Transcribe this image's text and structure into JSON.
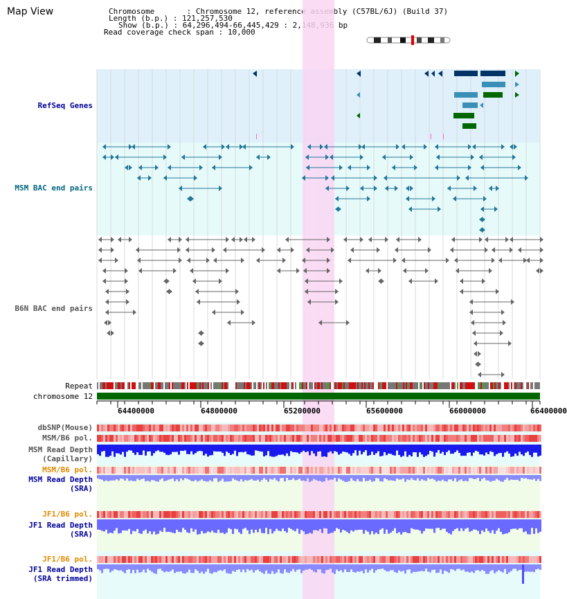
{
  "title": "Map View",
  "header": {
    "chromosome_label": "Chromosome",
    "chromosome_value": "Chromosome 12, reference assembly (C57BL/6J) (Build 37)",
    "length_label": "Length (b.p.)",
    "length_value": "121,257,530",
    "show_label": "Show (b.p.)",
    "show_value": "64,296,494-66,445,429 : 2,148,936 bp",
    "coverage_label": "Read coverage check span",
    "coverage_value": "10,000"
  },
  "tracks": {
    "refseq": "RefSeq Genes",
    "msm_bac": "MSM BAC end pairs",
    "b6n_bac": "B6N BAC end pairs",
    "repeat": "Repeat",
    "chromosome": "chromosome 12"
  },
  "ruler": {
    "ticks": [
      "64400000",
      "64800000",
      "65200000",
      "65600000",
      "66000000",
      "66400000"
    ]
  },
  "lower_tracks": {
    "dbsnp": "dbSNP(Mouse)",
    "msm_b6_pol_1": "MSM/B6 pol.",
    "msm_depth_cap_1": "MSM Read Depth",
    "msm_depth_cap_2": "(Capillary)",
    "msm_b6_pol_2": "MSM/B6 pol.",
    "msm_depth_sra_1": "MSM Read Depth",
    "msm_depth_sra_2": "(SRA)",
    "jf1_b6_pol_1": "JF1/B6 pol.",
    "jf1_depth_sra_1": "JF1 Read Depth",
    "jf1_depth_sra_2": "(SRA)",
    "jf1_b6_pol_2": "JF1/B6 pol.",
    "jf1_depth_trim_1": "JF1 Read Depth",
    "jf1_depth_trim_2": "(SRA trimmed)"
  },
  "colors": {
    "refseq_bg": "#dff0fb",
    "msm_bg": "#e6fafa",
    "highlight": "#f9d6f3",
    "label_blue": "#000099",
    "label_teal": "#006680",
    "label_gray": "#555555",
    "label_orange": "#e08a00",
    "gene_dark": "#003366",
    "gene_mid": "#3a8fb7",
    "gene_green": "#006600",
    "bac_teal": "#227799",
    "bac_gray": "#666666",
    "depth_blue": "#1a1aee",
    "depth_light": "#8a8aff"
  }
}
